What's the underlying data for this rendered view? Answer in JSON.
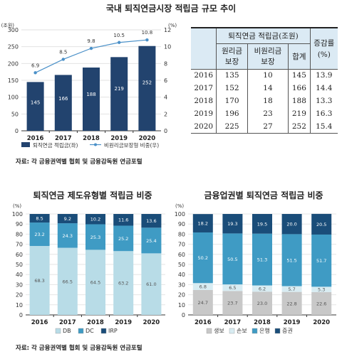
{
  "titles": {
    "top": "국내 퇴직연금시장 적립금 규모 추이",
    "bottom_left": "퇴직연금 제도유형별 적립금 비중",
    "bottom_right": "금융업권별 퇴직연금 적립금 비중"
  },
  "source": {
    "top": "자료: 각 금융권역별 협회 및 금융감독원 연금포털",
    "bottom_left": "자료: 각 금융권역별 협회 및 금융감독원 연금포털"
  },
  "table": {
    "header_group": "퇴직연금 적립금(조원)",
    "header_change": "증감률",
    "header_change_unit": "(%)",
    "col_principal": [
      "원리금",
      "보장"
    ],
    "col_non_principal": [
      "비원리금",
      "보장"
    ],
    "col_total": "합계",
    "rows": [
      {
        "year": "2016",
        "principal": "135",
        "non_principal": "10",
        "total": "145",
        "change": "13.9"
      },
      {
        "year": "2017",
        "principal": "152",
        "non_principal": "14",
        "total": "166",
        "change": "14.4"
      },
      {
        "year": "2018",
        "principal": "170",
        "non_principal": "18",
        "total": "188",
        "change": "13.3"
      },
      {
        "year": "2019",
        "principal": "196",
        "non_principal": "23",
        "total": "219",
        "change": "16.3"
      },
      {
        "year": "2020",
        "principal": "225",
        "non_principal": "27",
        "total": "252",
        "change": "15.4"
      }
    ]
  },
  "chart_data": [
    {
      "type": "bar",
      "categories": [
        "2016",
        "2017",
        "2018",
        "2019",
        "2020"
      ],
      "series": [
        {
          "name": "퇴직연금 적립금(좌)",
          "values": [
            145,
            166,
            188,
            219,
            252
          ],
          "color": "#22436e",
          "axis": "left"
        },
        {
          "name": "비원리금보장형 비중(우)",
          "type": "line",
          "values": [
            6.9,
            8.5,
            9.8,
            10.5,
            10.8
          ],
          "color": "#4a90c8",
          "axis": "right"
        }
      ],
      "ylabel_left": "(조원)",
      "ylabel_right": "(%)",
      "ylim_left": [
        0,
        300
      ],
      "ylim_right": [
        0,
        12
      ],
      "yticks_left": [
        "0",
        "50",
        "100",
        "150",
        "200",
        "250",
        "300"
      ],
      "yticks_right": [
        "0",
        "2",
        "4",
        "6",
        "8",
        "10",
        "12"
      ],
      "grid": true,
      "legend": "bottom"
    },
    {
      "type": "bar",
      "stacked": true,
      "categories": [
        "2016",
        "2017",
        "2018",
        "2019",
        "2020"
      ],
      "series": [
        {
          "name": "DB",
          "values": [
            68.3,
            66.5,
            64.5,
            63.2,
            61.0
          ],
          "color": "#b8dce7"
        },
        {
          "name": "DC",
          "values": [
            23.2,
            24.3,
            25.3,
            25.2,
            25.4
          ],
          "color": "#3f9bc4"
        },
        {
          "name": "IRP",
          "values": [
            8.5,
            9.2,
            10.2,
            11.6,
            13.6
          ],
          "color": "#1a4d79"
        }
      ],
      "ylabel": "(%)",
      "ylim": [
        0,
        100
      ],
      "yticks": [
        "0",
        "10",
        "20",
        "30",
        "40",
        "50",
        "60",
        "70",
        "80",
        "90",
        "100"
      ],
      "grid": true,
      "legend": "bottom"
    },
    {
      "type": "bar",
      "stacked": true,
      "categories": [
        "2016",
        "2017",
        "2018",
        "2019",
        "2020"
      ],
      "series": [
        {
          "name": "생보",
          "values": [
            24.7,
            23.7,
            23.0,
            22.8,
            22.6
          ],
          "color": "#c8c8c8"
        },
        {
          "name": "손보",
          "values": [
            6.8,
            6.5,
            6.2,
            5.7,
            5.3
          ],
          "color": "#d8ecf2"
        },
        {
          "name": "은행",
          "values": [
            50.2,
            50.5,
            51.3,
            51.5,
            51.7
          ],
          "color": "#3f9bc4"
        },
        {
          "name": "증권",
          "values": [
            18.2,
            19.3,
            19.5,
            20.0,
            20.5
          ],
          "color": "#1a4d79"
        }
      ],
      "ylabel": "(%)",
      "ylim": [
        0,
        100
      ],
      "yticks": [
        "0",
        "10",
        "20",
        "30",
        "40",
        "50",
        "60",
        "70",
        "80",
        "90",
        "100"
      ],
      "grid": true,
      "legend": "bottom"
    }
  ]
}
